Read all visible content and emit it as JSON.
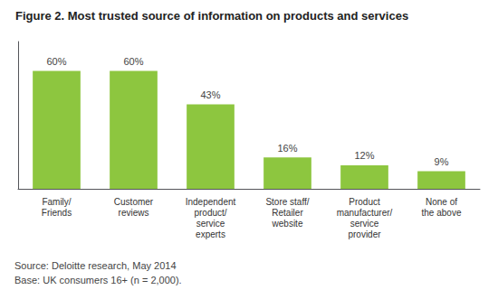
{
  "chart_data": {
    "type": "bar",
    "title": "Figure 2. Most trusted source of information on products and services",
    "categories": [
      "Family/\nFriends",
      "Customer\nreviews",
      "Independent\nproduct/\nservice\nexperts",
      "Store staff/\nRetailer\nwebsite",
      "Product\nmanufacturer/\nservice\nprovider",
      "None of\nthe above"
    ],
    "values": [
      60,
      60,
      43,
      16,
      12,
      9
    ],
    "value_labels": [
      "60%",
      "60%",
      "43%",
      "16%",
      "12%",
      "9%"
    ],
    "data_labels": true,
    "color": "#8DC63F",
    "ylim": [
      0,
      75
    ],
    "tick_labels": "x",
    "grid": false,
    "annotations": [
      "Source: Deloitte research, May 2014",
      "Base: UK consumers 16+ (n = 2,000)."
    ]
  }
}
